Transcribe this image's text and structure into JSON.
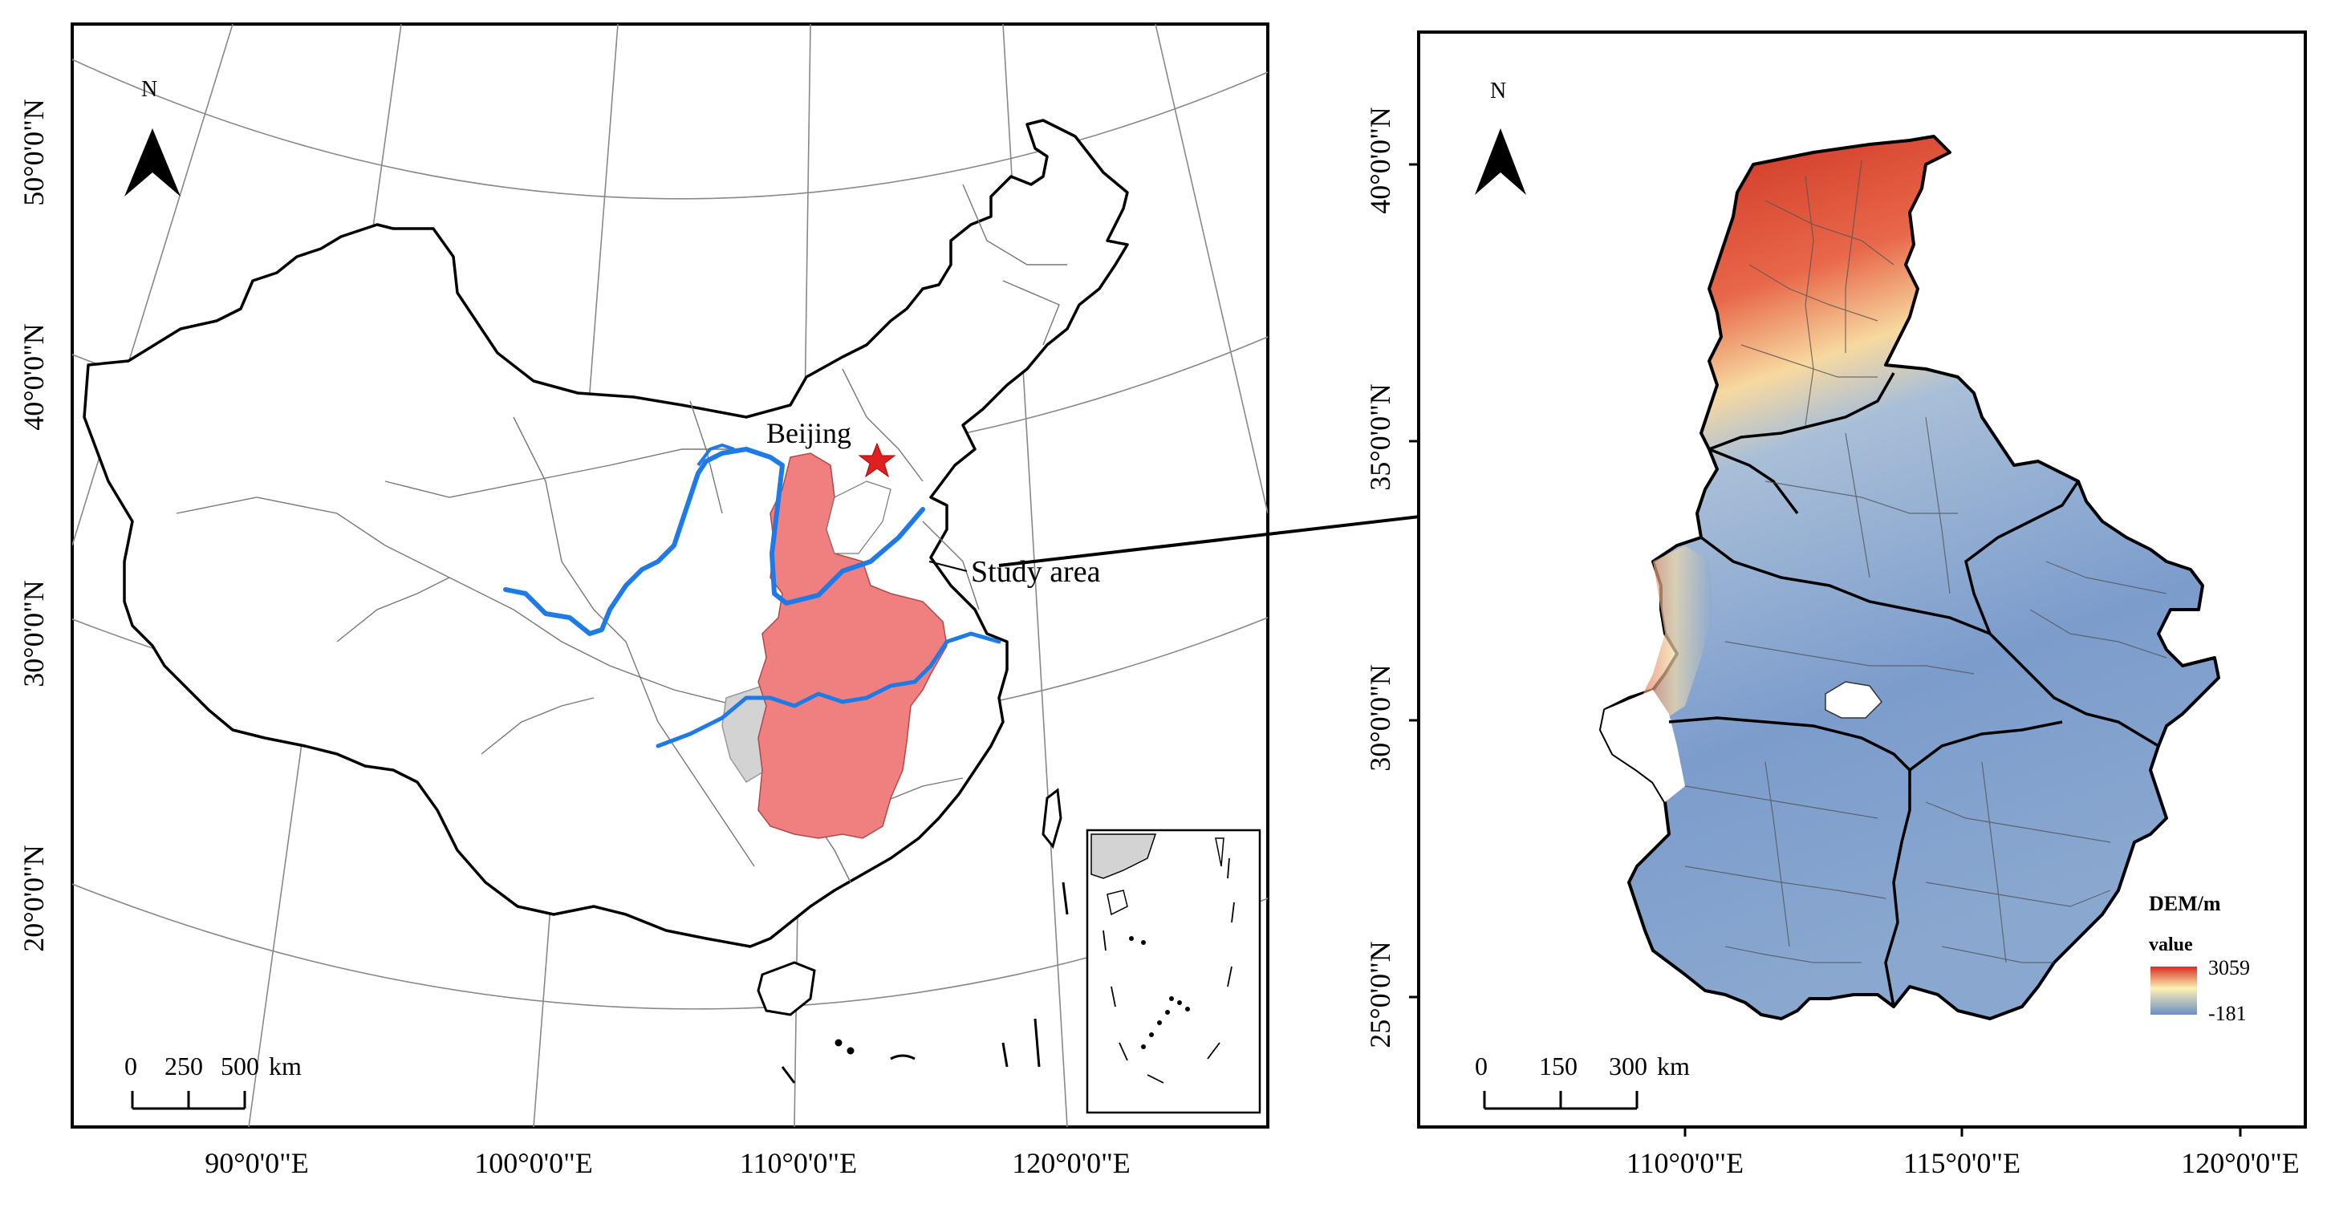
{
  "left_map": {
    "north_label": "N",
    "beijing_label": "Beijing",
    "study_area_label": "Study area",
    "scale": {
      "ticks": [
        "0",
        "250",
        "500"
      ],
      "unit": "km"
    },
    "lat_labels": [
      "50°0'0\"N",
      "40°0'0\"N",
      "30°0'0\"N",
      "20°0'0\"N"
    ],
    "lon_labels": [
      "90°0'0\"E",
      "100°0'0\"E",
      "110°0'0\"E",
      "120°0'0\"E"
    ]
  },
  "right_map": {
    "north_label": "N",
    "scale": {
      "ticks": [
        "0",
        "150",
        "300"
      ],
      "unit": "km"
    },
    "lat_labels": [
      "40°0'0\"N",
      "35°0'0\"N",
      "30°0'0\"N",
      "25°0'0\"N"
    ],
    "lon_labels": [
      "110°0'0\"E",
      "115°0'0\"E",
      "120°0'0\"E"
    ],
    "legend": {
      "title": "DEM/m",
      "subtitle": "value",
      "max": "3059",
      "min": "-181"
    }
  },
  "colors": {
    "study_area_fill": "#f08080",
    "yellow_river": "#1e7ae6",
    "beijing_star": "#e02020",
    "dem_high": "#d7301f",
    "dem_mid": "#fdf0b4",
    "dem_low": "#6b8fc4",
    "gray_region": "#d3d3d3"
  }
}
